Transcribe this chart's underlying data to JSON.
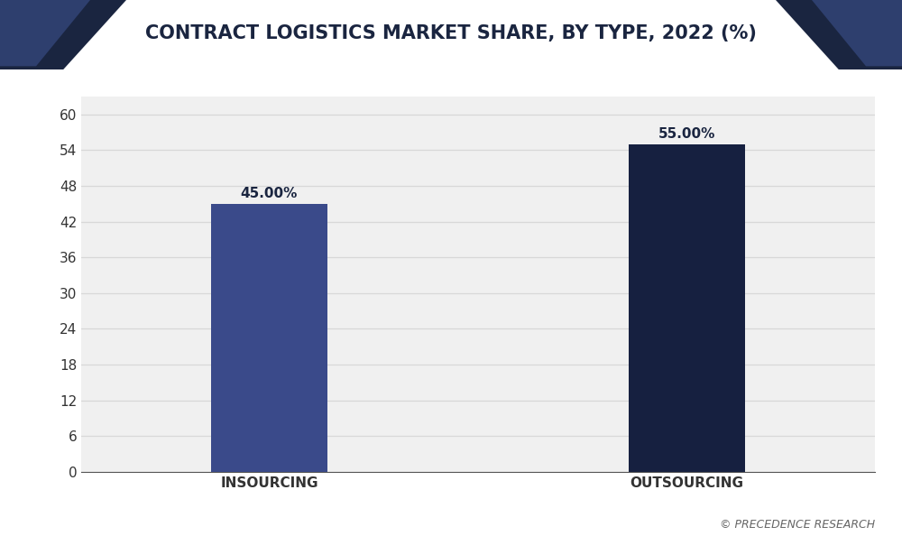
{
  "title": "CONTRACT LOGISTICS MARKET SHARE, BY TYPE, 2022 (%)",
  "categories": [
    "INSOURCING",
    "OUTSOURCING"
  ],
  "values": [
    45.0,
    55.0
  ],
  "bar_colors": [
    "#3a4a8a",
    "#162040"
  ],
  "bar_labels": [
    "45.00%",
    "55.00%"
  ],
  "ylim": [
    0,
    63
  ],
  "yticks": [
    0,
    6,
    12,
    18,
    24,
    30,
    36,
    42,
    48,
    54,
    60
  ],
  "background_color": "#ffffff",
  "plot_bg_color": "#f0f0f0",
  "title_color": "#1a2540",
  "title_fontsize": 15,
  "tick_fontsize": 11,
  "label_fontsize": 11,
  "grid_color": "#d8d8d8",
  "watermark": "© PRECEDENCE RESEARCH",
  "header_dark_color": "#1a2540",
  "header_mid_color": "#2e3f6e"
}
